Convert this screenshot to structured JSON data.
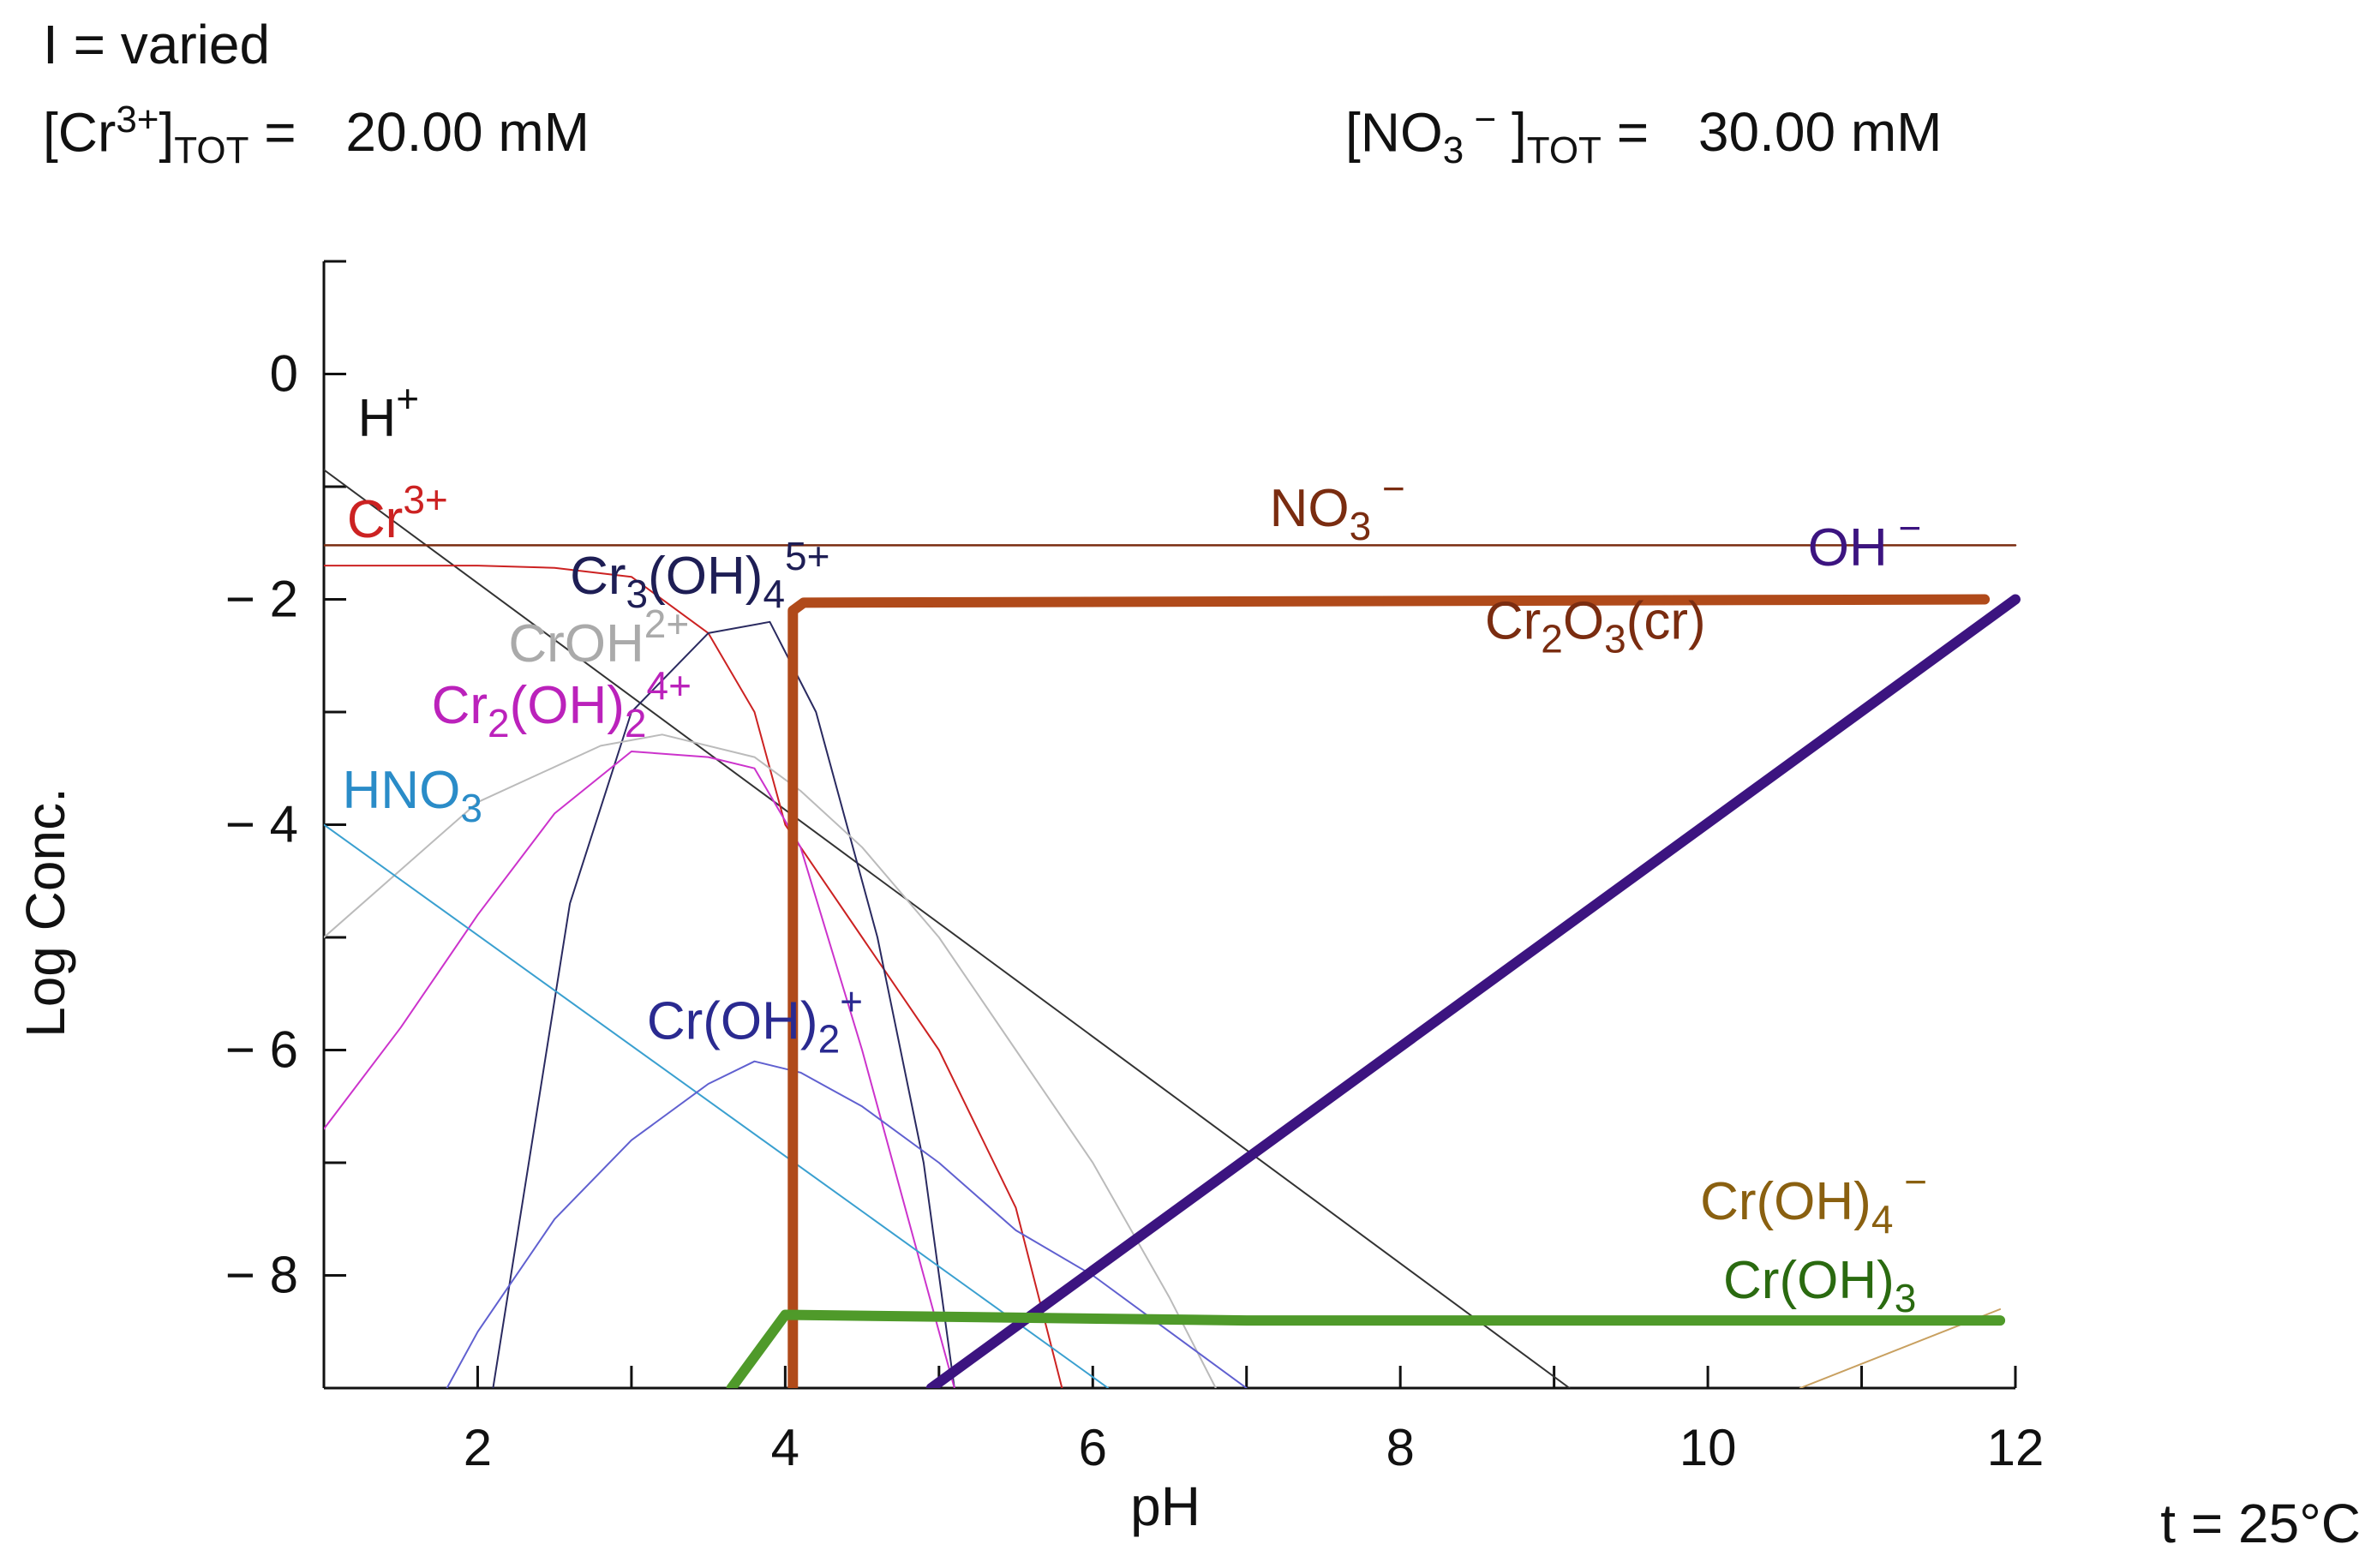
{
  "header": {
    "ionic_strength": "I = varied",
    "cr_total": {
      "open": "[Cr",
      "charge": "3+",
      "close": "]",
      "sub": "TOT",
      "eq": "=",
      "value": "20.00 mM"
    },
    "no3_total": {
      "open": "[NO",
      "sub1": "3",
      "charge": " −",
      "close": " ]",
      "sub2": "TOT",
      "eq": "=",
      "value": "30.00 mM"
    }
  },
  "footer": {
    "temperature": "t = 25°C"
  },
  "chart_data": {
    "type": "line",
    "xlabel": "pH",
    "ylabel": "Log Conc.",
    "xlim": [
      1,
      12
    ],
    "ylim": [
      -9,
      1
    ],
    "xticks": [
      2,
      4,
      6,
      8,
      10,
      12
    ],
    "yticks": [
      0,
      -2,
      -4,
      -6,
      -8
    ],
    "ytick_labels": [
      "0",
      "− 2",
      "− 4",
      "− 6",
      "− 8"
    ],
    "series": [
      {
        "name": "H+",
        "label": "H",
        "sup": "+",
        "color": "#333333",
        "width": 2,
        "points": [
          [
            1,
            -0.85
          ],
          [
            9.1,
            -9
          ]
        ]
      },
      {
        "name": "NO3-",
        "label": "NO",
        "sub": "3",
        "sup": " −",
        "color": "#7a2c10",
        "width": 2.5,
        "points": [
          [
            1,
            -1.52
          ],
          [
            12,
            -1.52
          ]
        ]
      },
      {
        "name": "Cr3+",
        "label": "Cr",
        "sup": "3+",
        "color": "#cc2222",
        "width": 2,
        "points": [
          [
            1,
            -1.7
          ],
          [
            2,
            -1.7
          ],
          [
            2.5,
            -1.72
          ],
          [
            3,
            -1.8
          ],
          [
            3.5,
            -2.3
          ],
          [
            3.8,
            -3
          ],
          [
            4,
            -4
          ],
          [
            4.5,
            -5
          ],
          [
            5,
            -6
          ],
          [
            5.5,
            -7.4
          ],
          [
            5.8,
            -9
          ]
        ]
      },
      {
        "name": "Cr3(OH)4 5+",
        "label": "Cr",
        "sub": "3",
        "mid": "(OH)",
        "sub2": "4",
        "sup": "5+",
        "color": "#2a2a60",
        "width": 2,
        "points": [
          [
            2.1,
            -9
          ],
          [
            2.6,
            -4.7
          ],
          [
            3,
            -3
          ],
          [
            3.5,
            -2.3
          ],
          [
            3.9,
            -2.2
          ],
          [
            4.2,
            -3
          ],
          [
            4.6,
            -5
          ],
          [
            4.9,
            -7
          ],
          [
            5.1,
            -9
          ]
        ]
      },
      {
        "name": "CrOH2+",
        "label": "CrOH",
        "sup": "2+",
        "color": "#bbbbbb",
        "width": 2,
        "points": [
          [
            1,
            -5
          ],
          [
            2,
            -3.8
          ],
          [
            2.8,
            -3.3
          ],
          [
            3.2,
            -3.2
          ],
          [
            3.8,
            -3.4
          ],
          [
            4.1,
            -3.7
          ],
          [
            4.5,
            -4.2
          ],
          [
            5,
            -5
          ],
          [
            5.5,
            -6
          ],
          [
            6,
            -7
          ],
          [
            6.5,
            -8.2
          ],
          [
            6.8,
            -9
          ]
        ]
      },
      {
        "name": "Cr2(OH)2 4+",
        "label": "Cr",
        "sub": "2",
        "mid": "(OH)",
        "sub2": "2",
        "sup": "4+",
        "color": "#cc33cc",
        "width": 2,
        "points": [
          [
            1,
            -6.7
          ],
          [
            1.5,
            -5.8
          ],
          [
            2,
            -4.8
          ],
          [
            2.5,
            -3.9
          ],
          [
            3,
            -3.35
          ],
          [
            3.5,
            -3.4
          ],
          [
            3.8,
            -3.5
          ],
          [
            4.1,
            -4.2
          ],
          [
            4.5,
            -6
          ],
          [
            4.9,
            -8
          ],
          [
            5.1,
            -9
          ]
        ]
      },
      {
        "name": "HNO3",
        "label": "HNO",
        "sub": "3",
        "color": "#3aa0d0",
        "width": 2,
        "points": [
          [
            1,
            -4
          ],
          [
            6.1,
            -9
          ]
        ]
      },
      {
        "name": "Cr(OH)2+",
        "label": "Cr(OH)",
        "sub": "2",
        "sup": "+",
        "color": "#6060d0",
        "width": 2,
        "points": [
          [
            1.8,
            -9
          ],
          [
            2,
            -8.5
          ],
          [
            2.5,
            -7.5
          ],
          [
            3,
            -6.8
          ],
          [
            3.5,
            -6.3
          ],
          [
            3.8,
            -6.1
          ],
          [
            4.1,
            -6.2
          ],
          [
            4.5,
            -6.5
          ],
          [
            5,
            -7
          ],
          [
            5.5,
            -7.6
          ],
          [
            6,
            -8
          ],
          [
            6.5,
            -8.5
          ],
          [
            7,
            -9
          ]
        ]
      },
      {
        "name": "Cr(OH)4-",
        "label": "Cr(OH)",
        "sub": "4",
        "sup": " −",
        "color": "#c8a060",
        "width": 2,
        "points": [
          [
            10.6,
            -9
          ],
          [
            11.9,
            -8.3
          ]
        ]
      },
      {
        "name": "Cr2O3(cr)",
        "label": "Cr",
        "sub": "2",
        "mid": "O",
        "sub2": "3",
        "tail": "(cr)",
        "color": "#b04a1a",
        "width": 12,
        "points": [
          [
            4.05,
            -9
          ],
          [
            4.05,
            -2.1
          ],
          [
            4.12,
            -2.03
          ],
          [
            11.8,
            -2.0
          ]
        ]
      },
      {
        "name": "OH-",
        "label": "OH",
        "sup": " −",
        "color": "#3c1480",
        "width": 12,
        "points": [
          [
            4.95,
            -9
          ],
          [
            12,
            -2
          ]
        ]
      },
      {
        "name": "Cr(OH)3",
        "label": "Cr(OH)",
        "sub": "3",
        "color": "#4f9a2a",
        "width": 12,
        "points": [
          [
            3.65,
            -9
          ],
          [
            4,
            -8.35
          ],
          [
            7,
            -8.4
          ],
          [
            11.9,
            -8.4
          ]
        ]
      }
    ],
    "series_labels": [
      {
        "series": "H+",
        "at": [
          1.22,
          -0.55
        ],
        "color": "#111111"
      },
      {
        "series": "Cr3+",
        "at": [
          1.15,
          -1.45
        ],
        "color": "#cc2222"
      },
      {
        "series": "NO3-",
        "at": [
          7.15,
          -1.35
        ],
        "color": "#7a2c10"
      },
      {
        "series": "Cr3(OH)4 5+",
        "at": [
          2.6,
          -1.95
        ],
        "color": "#1e1e55"
      },
      {
        "series": "OH-",
        "at": [
          10.65,
          -1.7
        ],
        "color": "#3c1480"
      },
      {
        "series": "Cr2O3(cr)",
        "at": [
          8.55,
          -2.35
        ],
        "color": "#7a2c10"
      },
      {
        "series": "CrOH2+",
        "at": [
          2.2,
          -2.55
        ],
        "color": "#aaaaaa"
      },
      {
        "series": "Cr2(OH)2 4+",
        "at": [
          1.7,
          -3.1
        ],
        "color": "#bb22bb"
      },
      {
        "series": "HNO3",
        "at": [
          1.12,
          -3.85
        ],
        "color": "#2a8cc8"
      },
      {
        "series": "Cr(OH)2+",
        "at": [
          3.1,
          -5.9
        ],
        "color": "#2a2a90"
      },
      {
        "series": "Cr(OH)4-",
        "at": [
          9.95,
          -7.5
        ],
        "color": "#8a6010"
      },
      {
        "series": "Cr(OH)3",
        "at": [
          10.1,
          -8.2
        ],
        "color": "#2a6a10"
      }
    ]
  }
}
